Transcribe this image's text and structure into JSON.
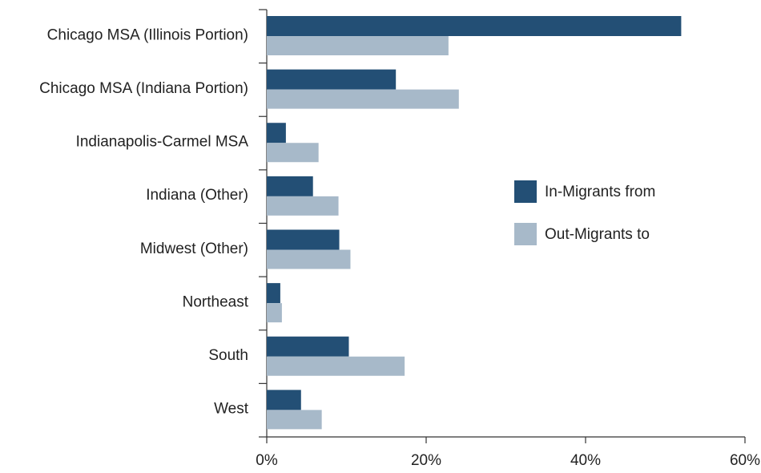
{
  "chart_data": {
    "type": "bar",
    "orientation": "horizontal",
    "categories": [
      "Chicago MSA (Illinois Portion)",
      "Chicago MSA (Indiana Portion)",
      "Indianapolis-Carmel MSA",
      "Indiana (Other)",
      "Midwest (Other)",
      "Northeast",
      "South",
      "West"
    ],
    "series": [
      {
        "name": "In-Migrants from",
        "color": "#234f75",
        "values": [
          52,
          16.2,
          2.4,
          5.8,
          9.1,
          1.7,
          10.3,
          4.3
        ]
      },
      {
        "name": "Out-Migrants to",
        "color": "#a7b9c9",
        "values": [
          22.8,
          24.1,
          6.5,
          9.0,
          10.5,
          1.9,
          17.3,
          6.9
        ]
      }
    ],
    "xlim": [
      0,
      60
    ],
    "xticks": [
      {
        "value": 0,
        "label": "0%"
      },
      {
        "value": 20,
        "label": "20%"
      },
      {
        "value": 40,
        "label": "40%"
      },
      {
        "value": 60,
        "label": "60%"
      }
    ],
    "legend": "right"
  }
}
